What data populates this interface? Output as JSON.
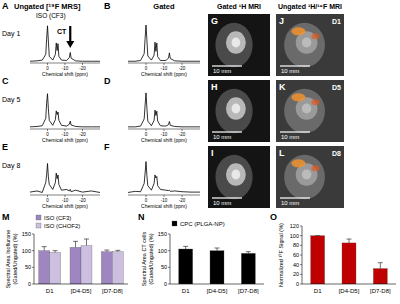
{
  "header": {
    "ungated_mrs": "Ungated [¹⁹F MRS]",
    "iso": "ISO (CF3)",
    "gated": "Gated",
    "gated_mri": "Gated ¹H MRI",
    "ungated_mri": "Ungated ¹H/¹⁹F MRI"
  },
  "days": [
    "Day 1",
    "Day 5",
    "Day 8"
  ],
  "annotation": {
    "text": "CT",
    "x": -13
  },
  "images": [
    {
      "panel": "G",
      "scale_bar": "10 mm"
    },
    {
      "panel": "H",
      "scale_bar": "10 mm"
    },
    {
      "panel": "I",
      "scale_bar": "10 mm"
    },
    {
      "panel": "J",
      "day": "D1",
      "scale_bar": "10 mm"
    },
    {
      "panel": "K",
      "day": "D5",
      "scale_bar": "10 mm"
    },
    {
      "panel": "L",
      "day": "D8",
      "scale_bar": "10 mm"
    }
  ],
  "chart_data": [
    {
      "type": "line",
      "panel": "A",
      "x_label": "Chemical shift (ppm)",
      "color": "#000000",
      "xlim": [
        10,
        -30
      ],
      "xticks": [
        0,
        -10,
        -20
      ],
      "ylim": [
        0,
        1.05
      ],
      "tick_labels": "x",
      "grid": false,
      "x": [
        10,
        6,
        3,
        1,
        0.5,
        0,
        -0.5,
        -1,
        -3,
        -4.5,
        -5,
        -5.5,
        -6,
        -6.5,
        -8,
        -11,
        -12.5,
        -13,
        -13.5,
        -16,
        -20,
        -25,
        -30
      ],
      "values": [
        0.02,
        0.03,
        0.05,
        0.2,
        0.6,
        0.95,
        0.55,
        0.15,
        0.05,
        0.2,
        0.5,
        0.3,
        0.48,
        0.15,
        0.05,
        0.04,
        0.12,
        0.25,
        0.1,
        0.03,
        0.02,
        0.02,
        0.02
      ]
    },
    {
      "type": "line",
      "panel": "B",
      "x_label": "Chemical shift (ppm)",
      "color": "#000000",
      "xlim": [
        10,
        -30
      ],
      "xticks": [
        0,
        -10,
        -20
      ],
      "ylim": [
        0,
        1.05
      ],
      "tick_labels": "x",
      "grid": false,
      "x": [
        10,
        6,
        3,
        1,
        0.5,
        0,
        -0.5,
        -1,
        -3,
        -4.5,
        -5,
        -5.5,
        -6,
        -6.5,
        -8,
        -11,
        -12.5,
        -13,
        -13.5,
        -16,
        -20,
        -25,
        -30
      ],
      "values": [
        0.02,
        0.02,
        0.04,
        0.22,
        0.62,
        0.97,
        0.58,
        0.16,
        0.05,
        0.18,
        0.52,
        0.28,
        0.5,
        0.14,
        0.04,
        0.04,
        0.1,
        0.24,
        0.09,
        0.03,
        0.02,
        0.02,
        0.02
      ]
    },
    {
      "type": "line",
      "panel": "C",
      "x_label": "Chemical shift (ppm)",
      "color": "#000000",
      "xlim": [
        10,
        -30
      ],
      "xticks": [
        0,
        -10,
        -20
      ],
      "ylim": [
        0,
        1.05
      ],
      "tick_labels": "x",
      "grid": false,
      "x": [
        10,
        6,
        3,
        1,
        0.5,
        0,
        -0.5,
        -1,
        -3,
        -4.5,
        -5,
        -5.5,
        -6,
        -6.5,
        -8,
        -11,
        -12.5,
        -13,
        -13.5,
        -16,
        -20,
        -25,
        -30
      ],
      "values": [
        0.03,
        0.04,
        0.06,
        0.25,
        0.65,
        0.9,
        0.5,
        0.2,
        0.07,
        0.22,
        0.45,
        0.35,
        0.42,
        0.2,
        0.07,
        0.05,
        0.1,
        0.18,
        0.08,
        0.04,
        0.03,
        0.03,
        0.03
      ]
    },
    {
      "type": "line",
      "panel": "D",
      "x_label": "Chemical shift (ppm)",
      "color": "#000000",
      "xlim": [
        10,
        -30
      ],
      "xticks": [
        0,
        -10,
        -20
      ],
      "ylim": [
        0,
        1.05
      ],
      "tick_labels": "x",
      "grid": false,
      "x": [
        10,
        6,
        3,
        1,
        0.5,
        0,
        -0.5,
        -1,
        -3,
        -4.5,
        -5,
        -5.5,
        -6,
        -6.5,
        -8,
        -11,
        -12.5,
        -13,
        -13.5,
        -16,
        -20,
        -25,
        -30
      ],
      "values": [
        0.03,
        0.03,
        0.05,
        0.24,
        0.6,
        0.92,
        0.52,
        0.18,
        0.06,
        0.2,
        0.47,
        0.33,
        0.44,
        0.18,
        0.06,
        0.05,
        0.09,
        0.17,
        0.07,
        0.04,
        0.03,
        0.03,
        0.03
      ]
    },
    {
      "type": "line",
      "panel": "E",
      "x_label": "Chemical shift (ppm)",
      "color": "#000000",
      "xlim": [
        10,
        -30
      ],
      "xticks": [
        0,
        -10,
        -20
      ],
      "ylim": [
        0,
        1.05
      ],
      "tick_labels": "x",
      "grid": false,
      "x": [
        10,
        6,
        3,
        1,
        0.5,
        0,
        -0.5,
        -1,
        -3,
        -4.5,
        -5,
        -5.5,
        -6,
        -6.5,
        -8,
        -11,
        -12.5,
        -13,
        -13.5,
        -16,
        -20,
        -25,
        -30
      ],
      "values": [
        0.05,
        0.08,
        0.04,
        0.3,
        0.5,
        0.8,
        0.45,
        0.25,
        0.12,
        0.3,
        0.55,
        0.4,
        0.5,
        0.25,
        0.1,
        0.12,
        0.08,
        0.12,
        0.06,
        0.1,
        0.05,
        0.08,
        0.04
      ]
    },
    {
      "type": "line",
      "panel": "F",
      "x_label": "Chemical shift (ppm)",
      "color": "#000000",
      "xlim": [
        10,
        -30
      ],
      "xticks": [
        0,
        -10,
        -20
      ],
      "ylim": [
        0,
        1.05
      ],
      "tick_labels": "x",
      "grid": false,
      "x": [
        10,
        6,
        3,
        1,
        0.5,
        0,
        -0.5,
        -1,
        -3,
        -4.5,
        -5,
        -5.5,
        -6,
        -6.5,
        -8,
        -11,
        -12.5,
        -13,
        -13.5,
        -16,
        -20,
        -25,
        -30
      ],
      "values": [
        0.04,
        0.07,
        0.06,
        0.28,
        0.55,
        0.85,
        0.48,
        0.22,
        0.1,
        0.28,
        0.5,
        0.42,
        0.46,
        0.22,
        0.12,
        0.1,
        0.09,
        0.1,
        0.07,
        0.08,
        0.06,
        0.05,
        0.05
      ]
    },
    {
      "type": "bar",
      "panel": "M",
      "y_label": [
        "Spectral Area Isoflurane",
        "(Gated/Ungated) (%)"
      ],
      "categories": [
        "D1",
        "[D4-D5]",
        "[D7-D8]"
      ],
      "ylim": [
        0,
        150
      ],
      "yticks": [
        0,
        50,
        100,
        150
      ],
      "grid": false,
      "legend": "top-left",
      "series": [
        {
          "name": "ISO (CF3)",
          "color": "#9f86c0",
          "values": [
            100,
            110,
            97
          ],
          "errors": [
            12,
            18,
            5
          ]
        },
        {
          "name": "ISO (CHOF2)",
          "color": "#cdbfe0",
          "values": [
            95,
            115,
            97
          ],
          "errors": [
            5,
            20,
            4
          ]
        }
      ]
    },
    {
      "type": "bar",
      "panel": "N",
      "y_label": [
        "Spectral Area CT cells",
        "(Gated/Ungated) (%)"
      ],
      "categories": [
        "D1",
        "[D4-D5]",
        "[D7-D8]"
      ],
      "ylim": [
        0,
        150
      ],
      "yticks": [
        0,
        50,
        100,
        150
      ],
      "grid": false,
      "legend": "top-left",
      "series": [
        {
          "name": "CPC (PLGA-NP)",
          "color": "#000000",
          "values": [
            105,
            100,
            92
          ],
          "errors": [
            8,
            8,
            5
          ]
        }
      ]
    },
    {
      "type": "bar",
      "panel": "O",
      "y_label": [
        "Normalized ¹⁹F Signal (%)"
      ],
      "categories": [
        "D1",
        "[D4-D5]",
        "[D7-D8]"
      ],
      "ylim": [
        0,
        120
      ],
      "yticks": [
        0,
        20,
        40,
        60,
        80,
        100,
        120
      ],
      "grid": false,
      "color": "#c00000",
      "values": [
        100,
        85,
        32
      ],
      "errors": [
        0,
        8,
        12
      ]
    }
  ]
}
